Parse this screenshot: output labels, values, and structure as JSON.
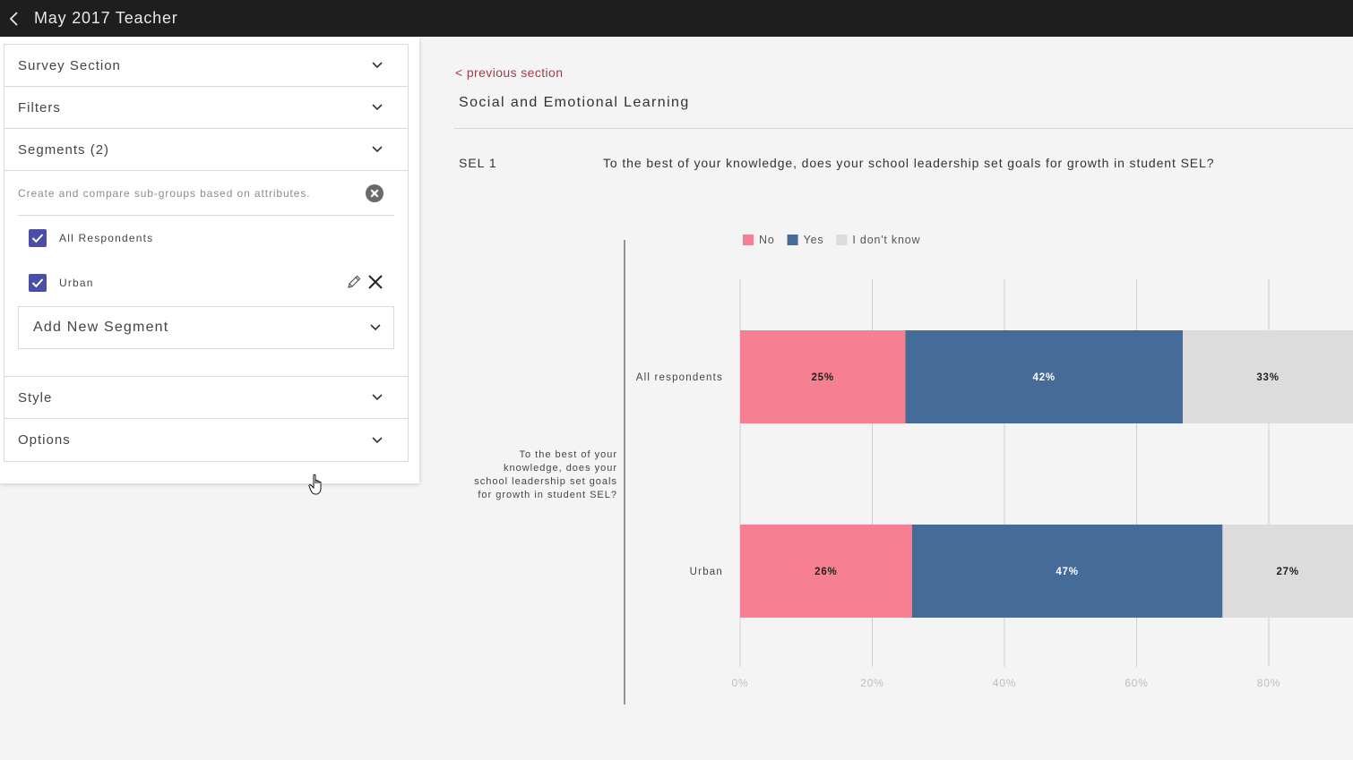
{
  "header": {
    "title": "May 2017 Teacher",
    "back_icon": "chevron-left-icon"
  },
  "panel": {
    "sections": {
      "survey_section": "Survey Section",
      "filters": "Filters",
      "segments": "Segments (2)",
      "style": "Style",
      "options": "Options"
    },
    "segments_description": "Create and compare sub-groups based on attributes.",
    "segment_items": [
      {
        "label": "All Respondents",
        "checked": true
      },
      {
        "label": "Urban",
        "checked": true
      }
    ],
    "add_segment_label": "Add New Segment"
  },
  "main": {
    "prev_link": "< previous section",
    "section_title": "Social and Emotional Learning",
    "question_id": "SEL 1",
    "question_text": "To the best of your knowledge, does your school leadership set goals for growth in student SEL?"
  },
  "colors": {
    "no": "#f67f91",
    "yes": "#456b98",
    "dont_know": "#dcdcdc",
    "accent": "#4b4ea7",
    "link": "#a33a4c"
  },
  "chart_data": {
    "type": "bar",
    "orientation": "horizontal",
    "stacked": true,
    "y_group_label": "To the best of your knowledge, does your school leadership set goals for growth in student SEL?",
    "categories": [
      "All respondents",
      "Urban"
    ],
    "series": [
      {
        "name": "No",
        "values": [
          25,
          26
        ],
        "labels": [
          "25%",
          "26%"
        ],
        "color": "#f67f91",
        "label_color": "#222222"
      },
      {
        "name": "Yes",
        "values": [
          42,
          47
        ],
        "labels": [
          "42%",
          "47%"
        ],
        "color": "#456b98",
        "label_color": "#ffffff"
      },
      {
        "name": "I don't know",
        "values": [
          33,
          27
        ],
        "labels": [
          "33%",
          "27%"
        ],
        "color": "#dcdcdc",
        "label_color": "#222222"
      }
    ],
    "x_ticks": [
      "0%",
      "20%",
      "40%",
      "60%",
      "80%"
    ],
    "xlim": [
      0,
      100
    ],
    "grid": true,
    "legend": "top"
  }
}
